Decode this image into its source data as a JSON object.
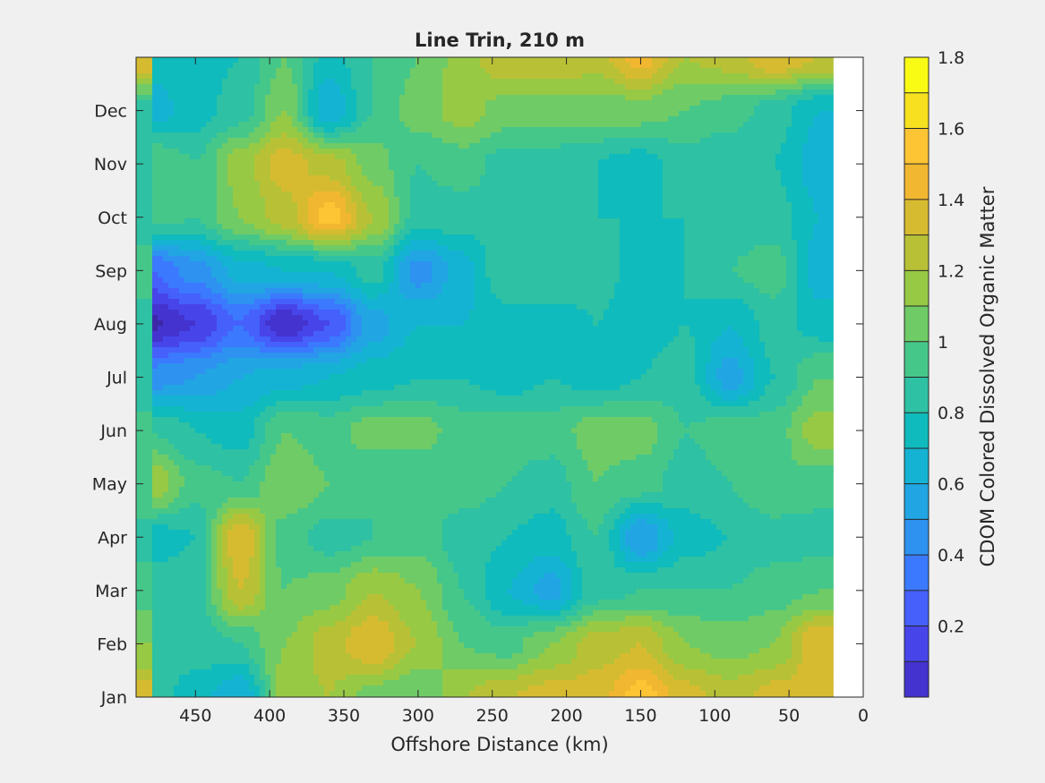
{
  "chart_data": {
    "type": "heatmap",
    "subtype": "filled-contour",
    "title": "Line Trin, 210 m",
    "xlabel": "Offshore Distance (km)",
    "ylabel": "",
    "x_reversed": true,
    "xlim": [
      0,
      490
    ],
    "x_ticks": [
      450,
      400,
      350,
      300,
      250,
      200,
      150,
      100,
      50,
      0
    ],
    "x_tick_labels": [
      "450",
      "400",
      "350",
      "300",
      "250",
      "200",
      "150",
      "100",
      "50",
      "0"
    ],
    "y_tick_labels": [
      "Jan",
      "Feb",
      "Mar",
      "Apr",
      "May",
      "Jun",
      "Jul",
      "Aug",
      "Sep",
      "Oct",
      "Nov",
      "Dec"
    ],
    "colorbar": {
      "label": "CDOM Colored Dissolved Organic Matter",
      "min": 0,
      "max": 1.8,
      "step": 0.1,
      "ticks": [
        0.2,
        0.4,
        0.6,
        0.8,
        1,
        1.2,
        1.4,
        1.6,
        1.8
      ],
      "tick_labels": [
        "0.2",
        "0.4",
        "0.6",
        "0.8",
        "1",
        "1.2",
        "1.4",
        "1.6",
        "1.8"
      ],
      "colormap": [
        "#3e26a8",
        "#4433ce",
        "#4745ea",
        "#4560fb",
        "#3b79fe",
        "#2d92f0",
        "#22a5e3",
        "#15b3d3",
        "#0fbbbc",
        "#2ec1a3",
        "#46c78a",
        "#6fcb66",
        "#97c944",
        "#b8c136",
        "#d6bb30",
        "#f1b730",
        "#fdc433",
        "#f6e01f",
        "#f9fb15"
      ]
    },
    "x_data": [
      480,
      450,
      420,
      390,
      360,
      330,
      300,
      270,
      240,
      210,
      180,
      150,
      120,
      90,
      60,
      30
    ],
    "y_data": [
      0,
      1,
      2,
      3,
      4,
      5,
      6,
      7,
      8,
      9,
      10,
      11,
      12
    ],
    "z": [
      [
        0.95,
        0.85,
        0.7,
        1.25,
        1.3,
        1.15,
        1.1,
        1.3,
        1.4,
        1.45,
        1.45,
        1.65,
        1.45,
        1.35,
        1.45,
        1.45
      ],
      [
        1.0,
        0.95,
        1.0,
        1.2,
        1.35,
        1.5,
        1.3,
        1.1,
        1.05,
        1.2,
        1.35,
        1.4,
        1.2,
        1.15,
        1.2,
        1.5
      ],
      [
        0.95,
        0.95,
        1.4,
        1.1,
        1.15,
        1.3,
        1.2,
        1.0,
        0.8,
        0.65,
        0.95,
        1.0,
        1.0,
        1.0,
        1.05,
        1.1
      ],
      [
        0.85,
        0.9,
        1.5,
        1.05,
        0.95,
        1.0,
        1.05,
        0.95,
        0.9,
        0.85,
        1.0,
        0.6,
        0.85,
        0.9,
        0.95,
        0.95
      ],
      [
        1.3,
        1.05,
        1.0,
        1.2,
        1.1,
        1.0,
        1.0,
        1.05,
        1.0,
        0.95,
        1.1,
        1.05,
        0.95,
        1.0,
        1.1,
        1.05
      ],
      [
        1.0,
        0.9,
        0.85,
        1.1,
        1.05,
        1.15,
        1.15,
        1.05,
        1.05,
        1.05,
        1.15,
        1.15,
        1.0,
        1.05,
        1.05,
        1.25
      ],
      [
        0.55,
        0.6,
        0.7,
        0.75,
        0.8,
        0.85,
        0.9,
        0.9,
        0.85,
        0.9,
        0.85,
        0.9,
        0.95,
        0.65,
        0.9,
        1.1
      ],
      [
        0.08,
        0.2,
        0.4,
        0.1,
        0.3,
        0.65,
        0.8,
        0.8,
        0.85,
        0.85,
        0.9,
        0.85,
        0.9,
        0.8,
        0.95,
        0.85
      ],
      [
        0.4,
        0.55,
        0.75,
        0.8,
        0.8,
        0.95,
        0.55,
        0.75,
        1.0,
        1.0,
        0.95,
        0.85,
        0.9,
        1.0,
        1.05,
        0.75
      ],
      [
        1.05,
        1.0,
        1.2,
        1.35,
        1.65,
        1.3,
        0.95,
        0.95,
        0.95,
        0.95,
        0.9,
        0.9,
        0.9,
        0.95,
        0.95,
        0.8
      ],
      [
        1.1,
        1.0,
        1.25,
        1.45,
        1.35,
        1.15,
        1.0,
        1.05,
        0.95,
        0.95,
        0.9,
        0.85,
        0.95,
        0.9,
        0.9,
        0.75
      ],
      [
        0.75,
        0.85,
        0.95,
        1.2,
        0.7,
        1.0,
        1.15,
        1.25,
        1.15,
        1.15,
        1.15,
        1.15,
        1.1,
        1.05,
        0.95,
        0.8
      ],
      [
        0.85,
        0.85,
        0.9,
        1.1,
        0.85,
        1.0,
        1.1,
        1.25,
        1.4,
        1.4,
        1.35,
        1.55,
        1.3,
        1.35,
        1.5,
        1.4
      ]
    ]
  }
}
